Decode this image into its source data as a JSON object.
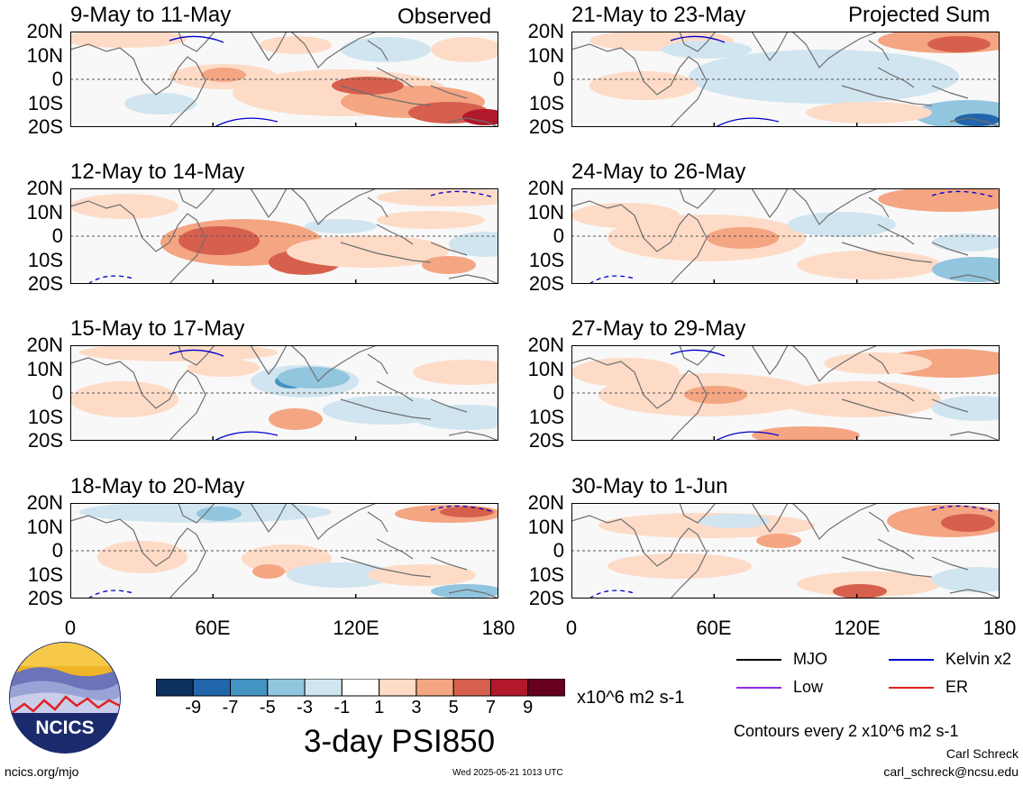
{
  "header": {
    "observed_label": "Observed",
    "projected_label": "Projected Sum"
  },
  "chart_data": [
    {
      "type": "heatmap",
      "title": "9-May to 11-May",
      "group": "Observed",
      "ylabels": [
        "20N",
        "10N",
        "0",
        "10S",
        "20S"
      ]
    },
    {
      "type": "heatmap",
      "title": "12-May to 14-May",
      "group": "Observed",
      "ylabels": [
        "20N",
        "10N",
        "0",
        "10S",
        "20S"
      ]
    },
    {
      "type": "heatmap",
      "title": "15-May to 17-May",
      "group": "Observed",
      "ylabels": [
        "20N",
        "10N",
        "0",
        "10S",
        "20S"
      ]
    },
    {
      "type": "heatmap",
      "title": "18-May to 20-May",
      "group": "Observed",
      "ylabels": [
        "20N",
        "10N",
        "0",
        "10S",
        "20S"
      ],
      "xlabels": [
        "0",
        "60E",
        "120E",
        "180"
      ]
    },
    {
      "type": "heatmap",
      "title": "21-May to 23-May",
      "group": "Projected Sum",
      "ylabels": [
        "20N",
        "10N",
        "0",
        "10S",
        "20S"
      ]
    },
    {
      "type": "heatmap",
      "title": "24-May to 26-May",
      "group": "Projected Sum",
      "ylabels": [
        "20N",
        "10N",
        "0",
        "10S",
        "20S"
      ]
    },
    {
      "type": "heatmap",
      "title": "27-May to 29-May",
      "group": "Projected Sum",
      "ylabels": [
        "20N",
        "10N",
        "0",
        "10S",
        "20S"
      ]
    },
    {
      "type": "heatmap",
      "title": "30-May to 1-Jun",
      "group": "Projected Sum",
      "ylabels": [
        "20N",
        "10N",
        "0",
        "10S",
        "20S"
      ],
      "xlabels": [
        "0",
        "60E",
        "120E",
        "180"
      ]
    }
  ],
  "colorbar": {
    "colors": [
      "#0b2f5e",
      "#2166ac",
      "#4393c3",
      "#92c5de",
      "#d1e5f0",
      "#ffffff",
      "#fddbc7",
      "#f4a582",
      "#d6604d",
      "#b2182b",
      "#67001f"
    ],
    "labels": [
      "-9",
      "-7",
      "-5",
      "-3",
      "-1",
      "1",
      "3",
      "5",
      "7",
      "9"
    ],
    "units": "x10^6 m2 s-1",
    "title": "3-day PSI850"
  },
  "legend": {
    "items": [
      {
        "label": "MJO",
        "color": "#000000"
      },
      {
        "label": "Kelvin x2",
        "color": "#0000cc"
      },
      {
        "label": "Low",
        "color": "#8a2be2"
      },
      {
        "label": "ER",
        "color": "#e02020"
      }
    ],
    "contour_note": "Contours every 2 x10^6 m2 s-1"
  },
  "logo": {
    "text": "NCICS"
  },
  "footer": {
    "site": "ncics.org/mjo",
    "timestamp": "Wed 2025-05-21 1013 UTC",
    "author": "Carl Schreck",
    "email": "carl_schreck@ncsu.edu"
  }
}
